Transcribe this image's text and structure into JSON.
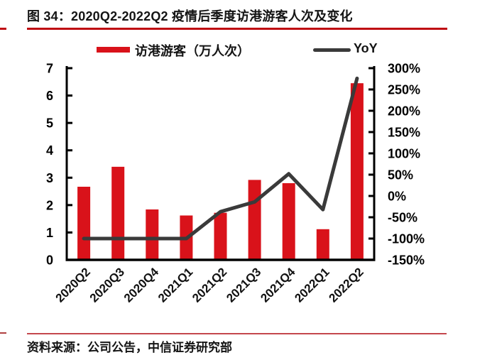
{
  "header": {
    "title": "图 34：2020Q2-2022Q2 疫情后季度访港游客人次及变化"
  },
  "legend": {
    "bar_label": "访港游客（万人次）",
    "line_label": "YoY"
  },
  "footer": {
    "source": "资料来源：公司公告，中信证券研究部"
  },
  "colors": {
    "bar_red": "#d9121a",
    "line_dark": "#3a3a3a",
    "title_rule_red": "#bf0a12",
    "divider_red": "#c4474d",
    "axis_black": "#000000",
    "text_black": "#141414"
  },
  "chart_data": {
    "type": "bar",
    "subtype": "bar+line combo, dual axis",
    "title": "2020Q2-2022Q2 疫情后季度访港游客人次及变化",
    "categories": [
      "2020Q2",
      "2020Q3",
      "2020Q4",
      "2021Q1",
      "2021Q2",
      "2021Q3",
      "2021Q4",
      "2022Q1",
      "2022Q2"
    ],
    "series": [
      {
        "name": "访港游客（万人次）",
        "type": "bar",
        "axis": "left",
        "color": "#d9121a",
        "values": [
          2.67,
          3.4,
          1.84,
          1.62,
          1.72,
          2.92,
          2.8,
          1.12,
          6.45
        ]
      },
      {
        "name": "YoY",
        "type": "line",
        "axis": "right",
        "color": "#3a3a3a",
        "unit": "%",
        "values": [
          -100,
          -100,
          -100,
          -100,
          -37,
          -14,
          52,
          -32,
          276
        ]
      }
    ],
    "left_axis": {
      "min": 0,
      "max": 7,
      "step": 1,
      "tick_labels": [
        "0",
        "1",
        "2",
        "3",
        "4",
        "5",
        "6",
        "7"
      ]
    },
    "right_axis": {
      "min": -150,
      "max": 300,
      "step": 50,
      "unit": "%",
      "tick_labels": [
        "300%",
        "250%",
        "200%",
        "150%",
        "100%",
        "50%",
        "0%",
        "-50%",
        "-100%",
        "-150%"
      ]
    },
    "legend_position": "top",
    "grid": false,
    "x_label_rotation_deg": -45
  }
}
